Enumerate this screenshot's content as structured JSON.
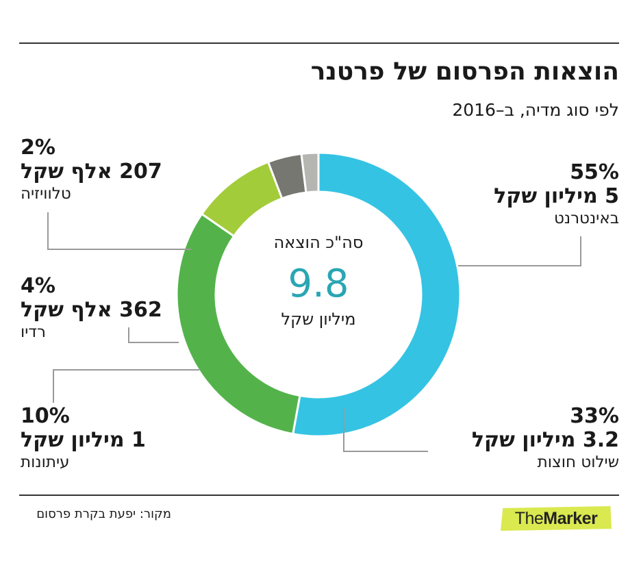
{
  "header": {
    "title": "הוצאות הפרסום של פרטנר",
    "subtitle": "לפי סוג מדיה, ב–2016"
  },
  "center": {
    "caption": "סה\"כ הוצאה",
    "value": "9.8",
    "unit": "מיליון שקל"
  },
  "labels": {
    "internet": {
      "pct": "55%",
      "amount": "5 מיליון שקל",
      "media": "באינטרנט"
    },
    "outdoor": {
      "pct": "33%",
      "amount": "3.2 מיליון שקל",
      "media": "שילוט חוצות"
    },
    "newspapers": {
      "pct": "10%",
      "amount": "1 מיליון שקל",
      "media": "עיתונות"
    },
    "radio": {
      "pct": "4%",
      "amount": "362 אלף שקל",
      "media": "רדיו"
    },
    "tv": {
      "pct": "2%",
      "amount": "207 אלף שקל",
      "media": "טלוויזיה"
    }
  },
  "footer": {
    "source": "מקור: יפעת בקרת פרסום",
    "logo_light": "The",
    "logo_bold": "Marker"
  },
  "chart_data": {
    "type": "pie",
    "style": "donut",
    "categories": [
      "באינטרנט",
      "שילוט חוצות",
      "עיתונות",
      "רדיו",
      "טלוויזיה"
    ],
    "values": [
      55,
      33,
      10,
      4,
      2
    ],
    "unit": "%",
    "colors": [
      "#35c3e3",
      "#53b34a",
      "#a3cc3a",
      "#777771",
      "#b5b5b1"
    ],
    "segment_gap_color": "#ffffff",
    "leader_line_color": "#999999",
    "accent_color": "#2aa6b3"
  }
}
